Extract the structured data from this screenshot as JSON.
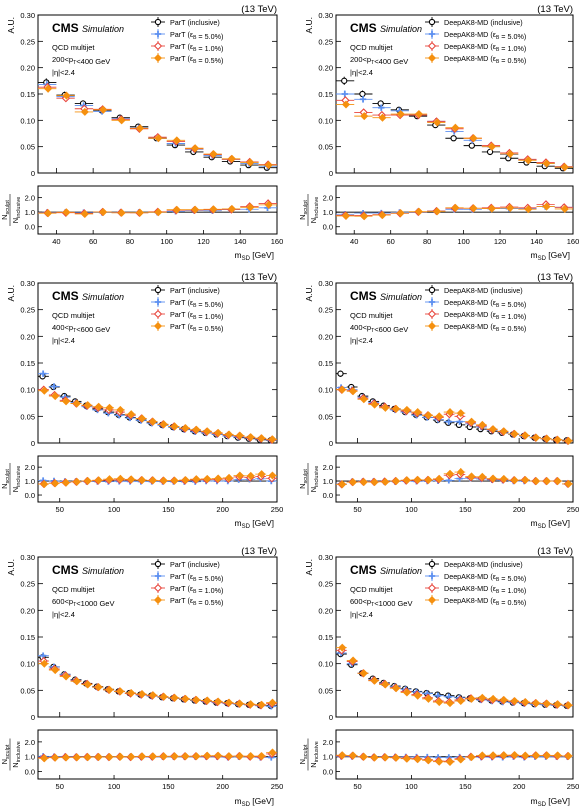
{
  "figure": {
    "experiment": "CMS",
    "label": "Simulation",
    "energy": "(13 TeV)",
    "process": "QCD multijet",
    "eta_cut": "|η|<2.4",
    "main_ylabel": "A.U.",
    "ratio_ylabel_num": "N",
    "ratio_ylabel_num_sub": "sculpt",
    "ratio_ylabel_den": "N",
    "ratio_ylabel_den_sub": "inclusive",
    "xlabel_main": "m",
    "xlabel_sub": "SD",
    "xlabel_unit": " [GeV]"
  },
  "colors": {
    "inclusive": "#000000",
    "eps5": "#5b8ff0",
    "eps1": "#e8453c",
    "eps05": "#f5900f"
  },
  "chart_data": [
    {
      "type": "scatter",
      "tagger": "ParT",
      "pt_range": "200<pT<400 GeV",
      "legend": [
        "ParT (inclusive)",
        "ParT (εB = 5.0%)",
        "ParT (εB = 1.0%)",
        "ParT (εB = 0.5%)"
      ],
      "xlim": [
        30,
        160
      ],
      "xticks": [
        40,
        60,
        80,
        100,
        120,
        140,
        160
      ],
      "ylim": [
        0,
        0.3
      ],
      "yticks": [
        0,
        0.05,
        0.1,
        0.15,
        0.2,
        0.25,
        0.3
      ],
      "ratio_ylim": [
        -0.5,
        2.8
      ],
      "ratio_yticks": [
        0,
        1,
        2
      ],
      "x": [
        35,
        45,
        55,
        65,
        75,
        85,
        95,
        105,
        115,
        125,
        135,
        145,
        155
      ],
      "series": [
        {
          "name": "inclusive",
          "values": [
            0.172,
            0.148,
            0.132,
            0.119,
            0.105,
            0.088,
            0.066,
            0.053,
            0.04,
            0.03,
            0.022,
            0.015,
            0.01
          ]
        },
        {
          "name": "eps5",
          "values": [
            0.168,
            0.145,
            0.128,
            0.117,
            0.103,
            0.086,
            0.066,
            0.056,
            0.045,
            0.033,
            0.026,
            0.018,
            0.013
          ]
        },
        {
          "name": "eps1",
          "values": [
            0.163,
            0.142,
            0.122,
            0.121,
            0.102,
            0.084,
            0.068,
            0.06,
            0.046,
            0.035,
            0.026,
            0.021,
            0.016
          ]
        },
        {
          "name": "eps05",
          "values": [
            0.16,
            0.147,
            0.116,
            0.12,
            0.1,
            0.085,
            0.066,
            0.062,
            0.047,
            0.036,
            0.027,
            0.02,
            0.015
          ]
        }
      ]
    },
    {
      "type": "scatter",
      "tagger": "DeepAK8-MD",
      "pt_range": "200<pT<400 GeV",
      "legend": [
        "DeepAK8-MD (inclusive)",
        "DeepAK8-MD (εB = 5.0%)",
        "DeepAK8-MD (εB = 1.0%)",
        "DeepAK8-MD (εB = 0.5%)"
      ],
      "xlim": [
        30,
        160
      ],
      "xticks": [
        40,
        60,
        80,
        100,
        120,
        140,
        160
      ],
      "ylim": [
        0,
        0.3
      ],
      "yticks": [
        0,
        0.05,
        0.1,
        0.15,
        0.2,
        0.25,
        0.3
      ],
      "ratio_ylim": [
        -0.5,
        2.8
      ],
      "ratio_yticks": [
        0,
        1,
        2
      ],
      "x": [
        35,
        45,
        55,
        65,
        75,
        85,
        95,
        105,
        115,
        125,
        135,
        145,
        155
      ],
      "series": [
        {
          "name": "inclusive",
          "values": [
            0.175,
            0.15,
            0.132,
            0.12,
            0.108,
            0.091,
            0.066,
            0.052,
            0.04,
            0.028,
            0.02,
            0.013,
            0.009
          ]
        },
        {
          "name": "eps5",
          "values": [
            0.15,
            0.14,
            0.124,
            0.118,
            0.11,
            0.098,
            0.079,
            0.062,
            0.05,
            0.035,
            0.025,
            0.018,
            0.012
          ]
        },
        {
          "name": "eps1",
          "values": [
            0.138,
            0.115,
            0.11,
            0.11,
            0.11,
            0.098,
            0.084,
            0.066,
            0.052,
            0.038,
            0.026,
            0.02,
            0.012
          ]
        },
        {
          "name": "eps05",
          "values": [
            0.13,
            0.108,
            0.105,
            0.112,
            0.112,
            0.096,
            0.086,
            0.066,
            0.05,
            0.036,
            0.024,
            0.018,
            0.011
          ]
        }
      ]
    },
    {
      "type": "scatter",
      "tagger": "ParT",
      "pt_range": "400<pT<600 GeV",
      "legend": [
        "ParT (inclusive)",
        "ParT (εB = 5.0%)",
        "ParT (εB = 1.0%)",
        "ParT (εB = 0.5%)"
      ],
      "xlim": [
        30,
        250
      ],
      "xticks": [
        50,
        100,
        150,
        200,
        250
      ],
      "ylim": [
        0,
        0.3
      ],
      "yticks": [
        0,
        0.05,
        0.1,
        0.15,
        0.2,
        0.25,
        0.3
      ],
      "ratio_ylim": [
        -0.5,
        2.8
      ],
      "ratio_yticks": [
        0,
        1,
        2
      ],
      "x": [
        35,
        45,
        55,
        65,
        75,
        85,
        95,
        105,
        115,
        125,
        135,
        145,
        155,
        165,
        175,
        185,
        195,
        205,
        215,
        225,
        235,
        245
      ],
      "series": [
        {
          "name": "inclusive",
          "values": [
            0.125,
            0.105,
            0.088,
            0.078,
            0.07,
            0.064,
            0.058,
            0.053,
            0.048,
            0.043,
            0.038,
            0.034,
            0.03,
            0.026,
            0.022,
            0.019,
            0.016,
            0.013,
            0.01,
            0.008,
            0.006,
            0.005
          ]
        },
        {
          "name": "eps5",
          "values": [
            0.13,
            0.106,
            0.086,
            0.076,
            0.068,
            0.062,
            0.056,
            0.052,
            0.047,
            0.042,
            0.037,
            0.033,
            0.029,
            0.025,
            0.021,
            0.019,
            0.016,
            0.013,
            0.011,
            0.009,
            0.007,
            0.005
          ]
        },
        {
          "name": "eps1",
          "values": [
            0.1,
            0.09,
            0.08,
            0.074,
            0.07,
            0.066,
            0.062,
            0.058,
            0.052,
            0.046,
            0.04,
            0.035,
            0.031,
            0.027,
            0.024,
            0.021,
            0.018,
            0.015,
            0.013,
            0.01,
            0.008,
            0.006
          ]
        },
        {
          "name": "eps05",
          "values": [
            0.098,
            0.088,
            0.078,
            0.074,
            0.071,
            0.068,
            0.066,
            0.062,
            0.054,
            0.046,
            0.04,
            0.035,
            0.031,
            0.028,
            0.025,
            0.022,
            0.019,
            0.016,
            0.014,
            0.011,
            0.009,
            0.007
          ]
        }
      ]
    },
    {
      "type": "scatter",
      "tagger": "DeepAK8-MD",
      "pt_range": "400<pT<600 GeV",
      "legend": [
        "DeepAK8-MD (inclusive)",
        "DeepAK8-MD (εB = 5.0%)",
        "DeepAK8-MD (εB = 1.0%)",
        "DeepAK8-MD (εB = 0.5%)"
      ],
      "xlim": [
        30,
        250
      ],
      "xticks": [
        50,
        100,
        150,
        200,
        250
      ],
      "ylim": [
        0,
        0.3
      ],
      "yticks": [
        0,
        0.05,
        0.1,
        0.15,
        0.2,
        0.25,
        0.3
      ],
      "ratio_ylim": [
        -0.5,
        2.8
      ],
      "ratio_yticks": [
        0,
        1,
        2
      ],
      "x": [
        35,
        45,
        55,
        65,
        75,
        85,
        95,
        105,
        115,
        125,
        135,
        145,
        155,
        165,
        175,
        185,
        195,
        205,
        215,
        225,
        235,
        245
      ],
      "series": [
        {
          "name": "inclusive",
          "values": [
            0.13,
            0.105,
            0.088,
            0.078,
            0.07,
            0.064,
            0.058,
            0.053,
            0.048,
            0.043,
            0.038,
            0.034,
            0.03,
            0.026,
            0.022,
            0.019,
            0.016,
            0.013,
            0.01,
            0.008,
            0.006,
            0.005
          ]
        },
        {
          "name": "eps5",
          "values": [
            0.104,
            0.1,
            0.086,
            0.076,
            0.068,
            0.062,
            0.058,
            0.052,
            0.048,
            0.044,
            0.04,
            0.04,
            0.036,
            0.03,
            0.024,
            0.02,
            0.016,
            0.013,
            0.01,
            0.008,
            0.006,
            0.004
          ]
        },
        {
          "name": "eps1",
          "values": [
            0.1,
            0.098,
            0.084,
            0.074,
            0.068,
            0.064,
            0.06,
            0.056,
            0.052,
            0.048,
            0.054,
            0.05,
            0.038,
            0.032,
            0.025,
            0.021,
            0.017,
            0.014,
            0.01,
            0.008,
            0.006,
            0.004
          ]
        },
        {
          "name": "eps05",
          "values": [
            0.1,
            0.097,
            0.082,
            0.072,
            0.066,
            0.064,
            0.062,
            0.058,
            0.052,
            0.05,
            0.058,
            0.056,
            0.04,
            0.034,
            0.026,
            0.022,
            0.017,
            0.014,
            0.01,
            0.008,
            0.006,
            0.004
          ]
        }
      ]
    },
    {
      "type": "scatter",
      "tagger": "ParT",
      "pt_range": "600<pT<1000 GeV",
      "legend": [
        "ParT (inclusive)",
        "ParT (εB = 5.0%)",
        "ParT (εB = 1.0%)",
        "ParT (εB = 0.5%)"
      ],
      "xlim": [
        30,
        250
      ],
      "xticks": [
        50,
        100,
        150,
        200,
        250
      ],
      "ylim": [
        0,
        0.3
      ],
      "yticks": [
        0,
        0.05,
        0.1,
        0.15,
        0.2,
        0.25,
        0.3
      ],
      "ratio_ylim": [
        -0.5,
        2.8
      ],
      "ratio_yticks": [
        0,
        1,
        2
      ],
      "x": [
        35,
        45,
        55,
        65,
        75,
        85,
        95,
        105,
        115,
        125,
        135,
        145,
        155,
        165,
        175,
        185,
        195,
        205,
        215,
        225,
        235,
        245
      ],
      "series": [
        {
          "name": "inclusive",
          "values": [
            0.112,
            0.094,
            0.08,
            0.07,
            0.063,
            0.057,
            0.052,
            0.048,
            0.045,
            0.042,
            0.04,
            0.037,
            0.035,
            0.033,
            0.031,
            0.029,
            0.027,
            0.026,
            0.024,
            0.023,
            0.022,
            0.021
          ]
        },
        {
          "name": "eps5",
          "values": [
            0.115,
            0.094,
            0.08,
            0.069,
            0.062,
            0.056,
            0.051,
            0.048,
            0.044,
            0.041,
            0.039,
            0.037,
            0.035,
            0.033,
            0.031,
            0.029,
            0.027,
            0.025,
            0.024,
            0.023,
            0.021,
            0.02
          ]
        },
        {
          "name": "eps1",
          "values": [
            0.105,
            0.09,
            0.078,
            0.068,
            0.062,
            0.056,
            0.051,
            0.048,
            0.044,
            0.042,
            0.04,
            0.038,
            0.036,
            0.034,
            0.032,
            0.03,
            0.028,
            0.026,
            0.025,
            0.023,
            0.022,
            0.025
          ]
        },
        {
          "name": "eps05",
          "values": [
            0.1,
            0.088,
            0.076,
            0.067,
            0.061,
            0.056,
            0.051,
            0.048,
            0.045,
            0.043,
            0.041,
            0.038,
            0.036,
            0.034,
            0.032,
            0.031,
            0.029,
            0.027,
            0.025,
            0.024,
            0.023,
            0.027
          ]
        }
      ]
    },
    {
      "type": "scatter",
      "tagger": "DeepAK8-MD",
      "pt_range": "600<pT<1000 GeV",
      "legend": [
        "DeepAK8-MD (inclusive)",
        "DeepAK8-MD (εB = 5.0%)",
        "DeepAK8-MD (εB = 1.0%)",
        "DeepAK8-MD (εB = 0.5%)"
      ],
      "xlim": [
        30,
        250
      ],
      "xticks": [
        50,
        100,
        150,
        200,
        250
      ],
      "ylim": [
        0,
        0.3
      ],
      "yticks": [
        0,
        0.05,
        0.1,
        0.15,
        0.2,
        0.25,
        0.3
      ],
      "ratio_ylim": [
        -0.5,
        2.8
      ],
      "ratio_yticks": [
        0,
        1,
        2
      ],
      "x": [
        35,
        45,
        55,
        65,
        75,
        85,
        95,
        105,
        115,
        125,
        135,
        145,
        155,
        165,
        175,
        185,
        195,
        205,
        215,
        225,
        235,
        245
      ],
      "series": [
        {
          "name": "inclusive",
          "values": [
            0.118,
            0.098,
            0.082,
            0.072,
            0.064,
            0.058,
            0.053,
            0.048,
            0.045,
            0.042,
            0.04,
            0.037,
            0.035,
            0.033,
            0.031,
            0.029,
            0.027,
            0.026,
            0.024,
            0.023,
            0.022,
            0.021
          ]
        },
        {
          "name": "eps5",
          "values": [
            0.12,
            0.1,
            0.082,
            0.07,
            0.063,
            0.057,
            0.052,
            0.047,
            0.044,
            0.04,
            0.038,
            0.036,
            0.034,
            0.032,
            0.03,
            0.028,
            0.027,
            0.025,
            0.024,
            0.023,
            0.022,
            0.021
          ]
        },
        {
          "name": "eps1",
          "values": [
            0.125,
            0.104,
            0.082,
            0.069,
            0.062,
            0.055,
            0.048,
            0.042,
            0.036,
            0.03,
            0.028,
            0.032,
            0.035,
            0.034,
            0.032,
            0.031,
            0.029,
            0.027,
            0.026,
            0.025,
            0.023,
            0.022
          ]
        },
        {
          "name": "eps05",
          "values": [
            0.13,
            0.106,
            0.082,
            0.068,
            0.061,
            0.054,
            0.046,
            0.04,
            0.034,
            0.028,
            0.026,
            0.03,
            0.034,
            0.036,
            0.034,
            0.032,
            0.03,
            0.028,
            0.026,
            0.025,
            0.024,
            0.022
          ]
        }
      ]
    }
  ]
}
